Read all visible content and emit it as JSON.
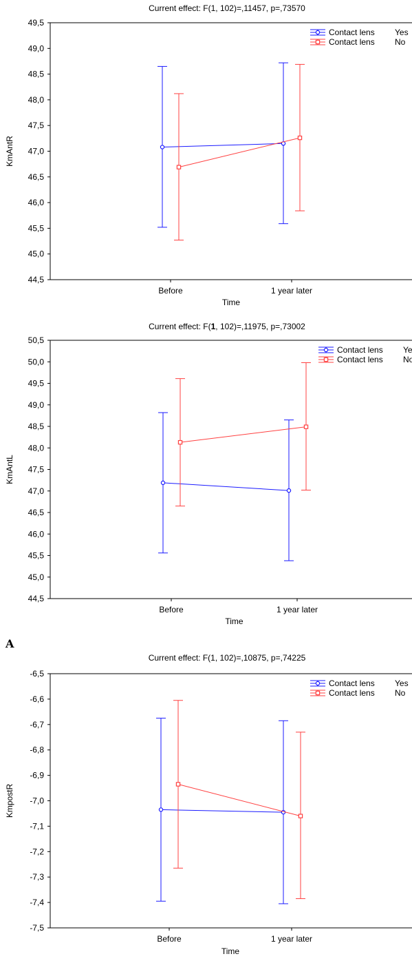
{
  "panel_label": "A",
  "colors": {
    "yes": "#1a1aff",
    "no": "#ff4040"
  },
  "chart_data": [
    {
      "type": "line",
      "title": "Current effect: F(1, 102)=,11457, p=,73570",
      "xlabel": "Time",
      "ylabel": "KmAntR",
      "categories": [
        "Before",
        "1 year later"
      ],
      "ylim": [
        44.5,
        49.5
      ],
      "yticks": [
        44.5,
        45.0,
        45.5,
        46.0,
        46.5,
        47.0,
        47.5,
        48.0,
        48.5,
        49.0,
        49.5
      ],
      "ytick_labels": [
        "44,5",
        "45,0",
        "45,5",
        "46,0",
        "46,5",
        "47,0",
        "47,5",
        "48,0",
        "48,5",
        "49,0",
        "49,5"
      ],
      "legend_position": "top-right",
      "series": [
        {
          "name": "Contact lens",
          "level": "Yes",
          "color": "#1a1aff",
          "marker": "circle",
          "values": [
            47.08,
            47.15
          ],
          "lower": [
            45.52,
            45.59
          ],
          "upper": [
            48.65,
            48.72
          ]
        },
        {
          "name": "Contact lens",
          "level": "No",
          "color": "#ff4040",
          "marker": "square",
          "values": [
            46.69,
            47.26
          ],
          "lower": [
            45.27,
            45.84
          ],
          "upper": [
            48.12,
            48.69
          ]
        }
      ]
    },
    {
      "type": "line",
      "title_parts": [
        "Current effect: F(",
        "1",
        ", 102)=,11975, p=,73002"
      ],
      "xlabel": "Time",
      "ylabel": "KmAntL",
      "categories": [
        "Before",
        "1 year later"
      ],
      "ylim": [
        44.5,
        50.5
      ],
      "yticks": [
        44.5,
        45.0,
        45.5,
        46.0,
        46.5,
        47.0,
        47.5,
        48.0,
        48.5,
        49.0,
        49.5,
        50.0,
        50.5
      ],
      "ytick_labels": [
        "44,5",
        "45,0",
        "45,5",
        "46,0",
        "46,5",
        "47,0",
        "47,5",
        "48,0",
        "48,5",
        "49,0",
        "49,5",
        "50,0",
        "50,5"
      ],
      "legend_position": "top-right",
      "series": [
        {
          "name": "Contact lens",
          "level": "Yes",
          "color": "#1a1aff",
          "marker": "circle",
          "values": [
            47.19,
            47.01
          ],
          "lower": [
            45.56,
            45.38
          ],
          "upper": [
            48.82,
            48.65
          ]
        },
        {
          "name": "Contact lens",
          "level": "No",
          "color": "#ff4040",
          "marker": "square",
          "values": [
            48.13,
            48.49
          ],
          "lower": [
            46.65,
            47.02
          ],
          "upper": [
            49.61,
            49.98
          ]
        }
      ]
    },
    {
      "type": "line",
      "title": "Current effect: F(1, 102)=,10875, p=,74225",
      "xlabel": "Time",
      "ylabel": "KmpostR",
      "categories": [
        "Before",
        "1 year later"
      ],
      "ylim": [
        -7.5,
        -6.5
      ],
      "yticks": [
        -7.5,
        -7.4,
        -7.3,
        -7.2,
        -7.1,
        -7.0,
        -6.9,
        -6.8,
        -6.7,
        -6.6,
        -6.5
      ],
      "ytick_labels": [
        "-7,5",
        "-7,4",
        "-7,3",
        "-7,2",
        "-7,1",
        "-7,0",
        "-6,9",
        "-6,8",
        "-6,7",
        "-6,6",
        "-6,5"
      ],
      "legend_position": "top-right",
      "series": [
        {
          "name": "Contact lens",
          "level": "Yes",
          "color": "#1a1aff",
          "marker": "circle",
          "values": [
            -7.035,
            -7.045
          ],
          "lower": [
            -7.395,
            -7.405
          ],
          "upper": [
            -6.675,
            -6.685
          ]
        },
        {
          "name": "Contact lens",
          "level": "No",
          "color": "#ff4040",
          "marker": "square",
          "values": [
            -6.935,
            -7.06
          ],
          "lower": [
            -7.265,
            -7.385
          ],
          "upper": [
            -6.605,
            -6.73
          ]
        }
      ]
    }
  ]
}
